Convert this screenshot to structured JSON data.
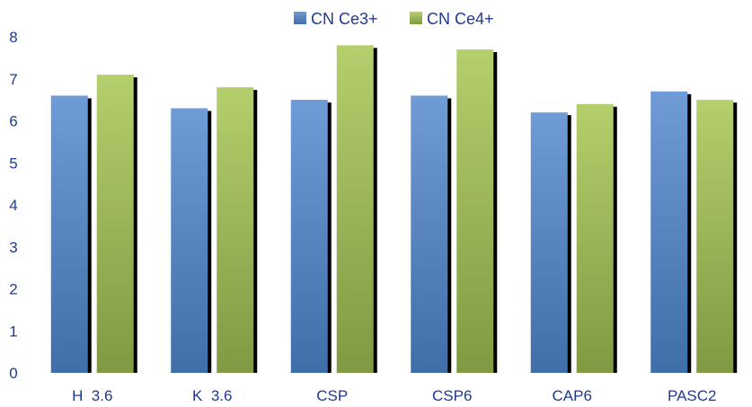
{
  "chart_data": {
    "type": "bar",
    "categories": [
      "H  3.6",
      "K  3.6",
      "CSP",
      "CSP6",
      "CAP6",
      "PASC2"
    ],
    "series": [
      {
        "name": "CN Ce3+",
        "values": [
          6.6,
          6.3,
          6.5,
          6.6,
          6.2,
          6.7
        ],
        "color": "#4f81bd"
      },
      {
        "name": "CN Ce4+",
        "values": [
          7.1,
          6.8,
          7.8,
          7.7,
          6.4,
          6.5
        ],
        "color": "#9bbb59"
      }
    ],
    "yticks": [
      0,
      1,
      2,
      3,
      4,
      5,
      6,
      7,
      8
    ],
    "ylim": [
      0,
      8
    ],
    "legend_position": "top-center",
    "grid": false,
    "title": "",
    "xlabel": "",
    "ylabel": ""
  }
}
